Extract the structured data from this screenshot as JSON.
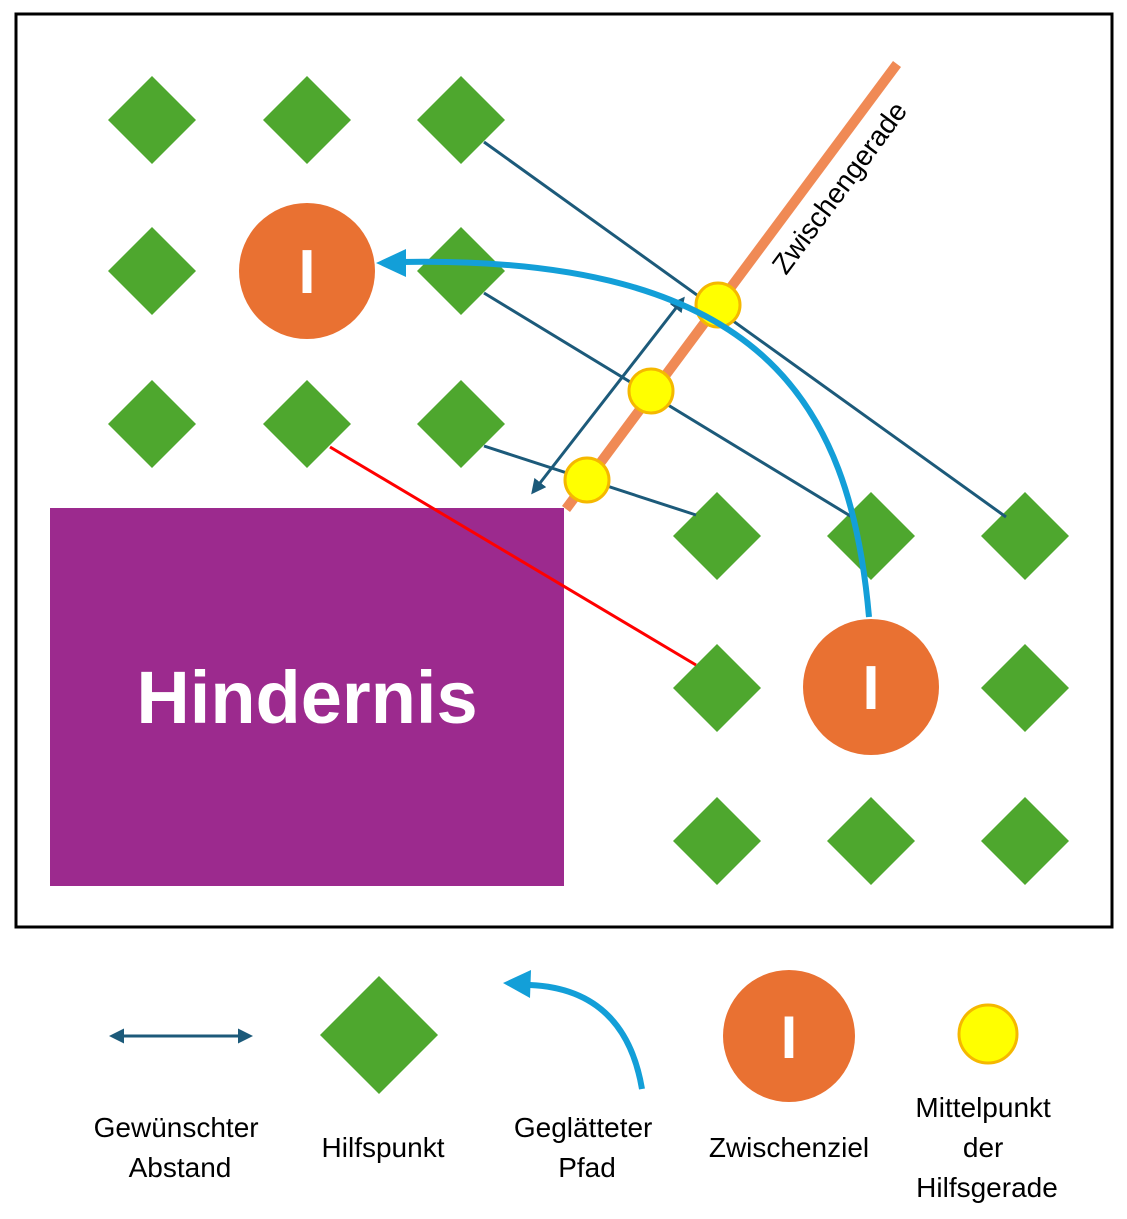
{
  "diagram": {
    "obstacle_label": "Hindernis",
    "line_label": "Zwischengerade",
    "goal_symbol": "I"
  },
  "legend": {
    "desired_distance": [
      "Gewünschter",
      "Abstand"
    ],
    "helper_point": [
      "Hilfspunkt"
    ],
    "smoothed_path": [
      "Geglätteter",
      "Pfad"
    ],
    "intermediate_goal": [
      "Zwischenziel"
    ],
    "midpoint": [
      "Mittelpunkt",
      "der",
      "Hilfsgerade"
    ],
    "goal_symbol": "I"
  },
  "colors": {
    "frame": "#000000",
    "helper_point": "#4ea72e",
    "obstacle": "#9c2a8e",
    "goal": "#e97132",
    "intermediate_line": "#f08a55",
    "path": "#139fd8",
    "connector": "#1c5a7a",
    "violation": "#ff0000",
    "midpoint_fill": "#ffff00",
    "midpoint_stroke": "#f5b800"
  }
}
